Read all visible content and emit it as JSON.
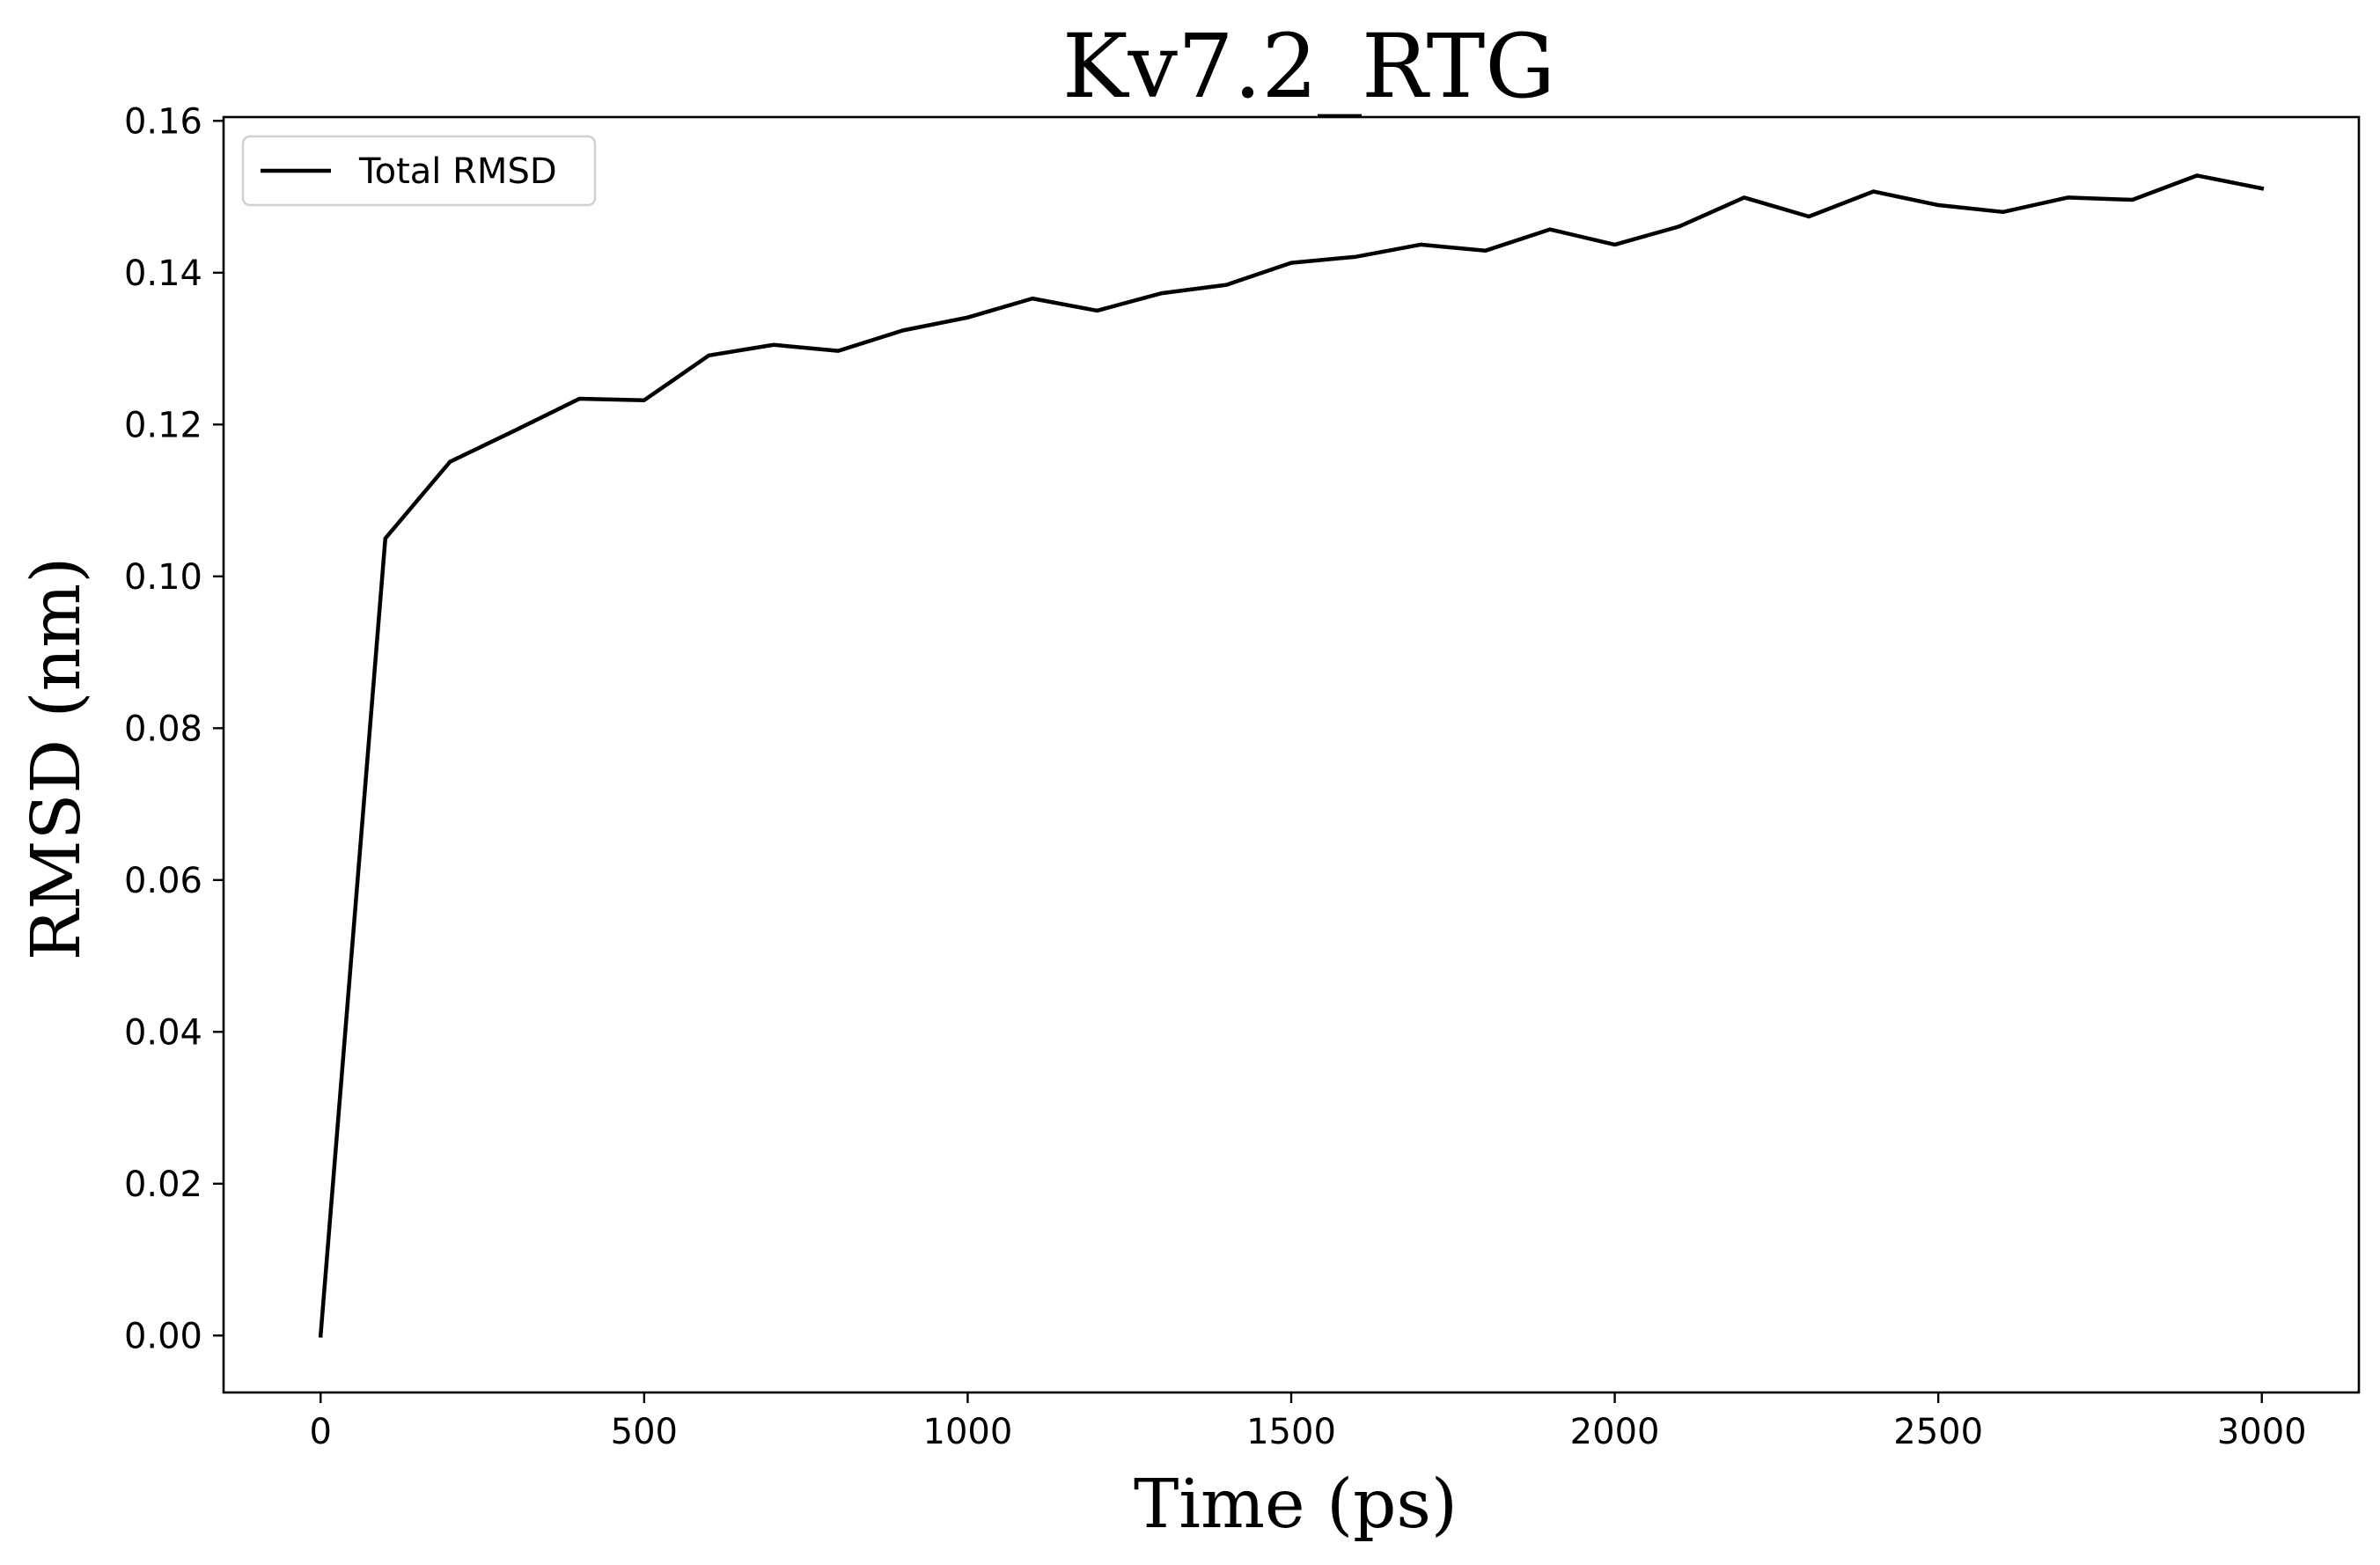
{
  "chart_data": {
    "type": "line",
    "title": "Kv7.2_RTG",
    "xlabel": "Time (ps)",
    "ylabel": "RMSD (nm)",
    "xlim": [
      -150,
      3150
    ],
    "ylim": [
      -0.0075,
      0.1605
    ],
    "x_ticks": [
      0,
      500,
      1000,
      1500,
      2000,
      2500,
      3000
    ],
    "x_tick_labels": [
      "0",
      "500",
      "1000",
      "1500",
      "2000",
      "2500",
      "3000"
    ],
    "y_ticks": [
      0.0,
      0.02,
      0.04,
      0.06,
      0.08,
      0.1,
      0.12,
      0.14,
      0.16
    ],
    "y_tick_labels": [
      "0.00",
      "0.02",
      "0.04",
      "0.06",
      "0.08",
      "0.10",
      "0.12",
      "0.14",
      "0.16"
    ],
    "grid": false,
    "legend_position": "top-left",
    "series": [
      {
        "name": "Total RMSD",
        "color": "#000000",
        "x": [
          0,
          100,
          200,
          300,
          400,
          500,
          600,
          700,
          800,
          900,
          1000,
          1100,
          1200,
          1300,
          1400,
          1500,
          1600,
          1700,
          1800,
          1900,
          2000,
          2100,
          2200,
          2300,
          2400,
          2500,
          2600,
          2700,
          2800,
          2900,
          3000
        ],
        "y": [
          0.0,
          0.105,
          0.1151,
          0.1192,
          0.1234,
          0.1232,
          0.1291,
          0.1305,
          0.1297,
          0.1324,
          0.1341,
          0.1366,
          0.135,
          0.1373,
          0.1384,
          0.1413,
          0.1421,
          0.1437,
          0.1429,
          0.1457,
          0.1437,
          0.1461,
          0.1499,
          0.1474,
          0.1507,
          0.1489,
          0.148,
          0.1499,
          0.1496,
          0.1528,
          0.1511
        ]
      }
    ]
  }
}
